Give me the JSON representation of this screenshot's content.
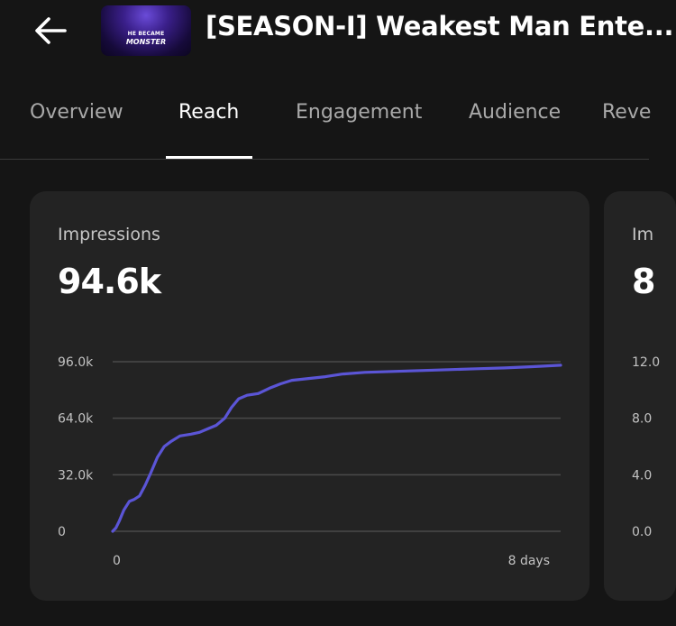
{
  "header": {
    "back_icon": "arrow-left-icon",
    "thumbnail": {
      "line1": "HE BECAME",
      "line2": "MONSTER"
    },
    "title": "[SEASON-I] Weakest Man Ente..."
  },
  "tabs": [
    {
      "label": "Overview",
      "active": false
    },
    {
      "label": "Reach",
      "active": true
    },
    {
      "label": "Engagement",
      "active": false
    },
    {
      "label": "Audience",
      "active": false
    },
    {
      "label": "Reve",
      "active": false
    }
  ],
  "cards": [
    {
      "label": "Impressions",
      "value": "94.6k",
      "chart_data": {
        "type": "line",
        "y_tick_labels": [
          "96.0k",
          "64.0k",
          "32.0k",
          "0"
        ],
        "x_tick_labels": [
          "0",
          "8 days"
        ],
        "ylim": [
          0,
          96000
        ],
        "xlim": [
          0,
          8
        ],
        "grid": true,
        "series_color": "#5b55d6",
        "series": [
          {
            "x": [
              0,
              0.06,
              0.12,
              0.2,
              0.3,
              0.38,
              0.48,
              0.58,
              0.68,
              0.8,
              0.92,
              1.05,
              1.2,
              1.4,
              1.55,
              1.7,
              1.85,
              2.0,
              2.12,
              2.25,
              2.4,
              2.6,
              2.8,
              3.0,
              3.2,
              3.5,
              3.8,
              4.1,
              4.5,
              5.0,
              5.5,
              6.0,
              6.5,
              7.0,
              7.5,
              8.0
            ],
            "y": [
              0,
              2000,
              6000,
              12000,
              17000,
              18000,
              20000,
              26000,
              33000,
              42000,
              48000,
              51000,
              54000,
              55000,
              56000,
              58000,
              60000,
              64000,
              70000,
              75000,
              77000,
              78000,
              81000,
              83500,
              85500,
              86500,
              87500,
              89000,
              90000,
              90500,
              91000,
              91500,
              92000,
              92500,
              93200,
              94000
            ]
          }
        ]
      }
    },
    {
      "label": "Im",
      "value": "8",
      "chart_data": {
        "type": "line",
        "y_tick_labels": [
          "12.0",
          "8.0",
          "4.0",
          "0.0"
        ],
        "x_tick_labels": [],
        "grid": true,
        "series": []
      }
    }
  ]
}
